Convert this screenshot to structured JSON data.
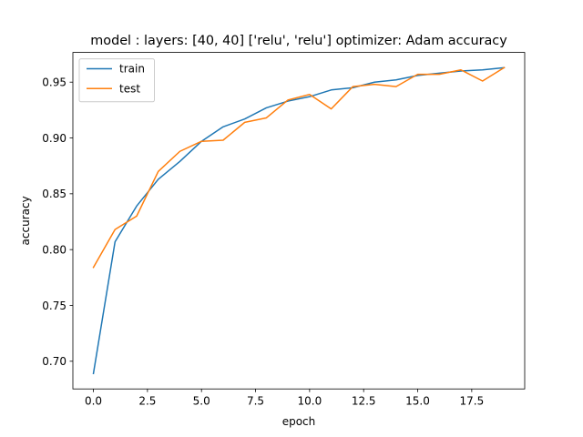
{
  "chart_data": {
    "type": "line",
    "title": "model : layers: [40, 40] ['relu', 'relu'] optimizer: Adam accuracy",
    "xlabel": "epoch",
    "ylabel": "accuracy",
    "xlim": [
      -0.95,
      19.95
    ],
    "ylim": [
      0.6752,
      0.9766
    ],
    "xticks": [
      0.0,
      2.5,
      5.0,
      7.5,
      10.0,
      12.5,
      15.0,
      17.5
    ],
    "xtick_labels": [
      "0.0",
      "2.5",
      "5.0",
      "7.5",
      "10.0",
      "12.5",
      "15.0",
      "17.5"
    ],
    "yticks": [
      0.7,
      0.75,
      0.8,
      0.85,
      0.9,
      0.95
    ],
    "ytick_labels": [
      "0.70",
      "0.75",
      "0.80",
      "0.85",
      "0.90",
      "0.95"
    ],
    "grid": false,
    "legend_position": "top-left",
    "x": [
      0,
      1,
      2,
      3,
      4,
      5,
      6,
      7,
      8,
      9,
      10,
      11,
      12,
      13,
      14,
      15,
      16,
      17,
      18,
      19
    ],
    "series": [
      {
        "name": "train",
        "color": "#1f77b4",
        "values": [
          0.689,
          0.807,
          0.839,
          0.863,
          0.879,
          0.897,
          0.91,
          0.917,
          0.927,
          0.933,
          0.937,
          0.943,
          0.945,
          0.95,
          0.952,
          0.956,
          0.958,
          0.96,
          0.961,
          0.963
        ]
      },
      {
        "name": "test",
        "color": "#ff7f0e",
        "values": [
          0.784,
          0.818,
          0.83,
          0.87,
          0.888,
          0.897,
          0.898,
          0.914,
          0.918,
          0.934,
          0.939,
          0.926,
          0.946,
          0.948,
          0.946,
          0.957,
          0.957,
          0.961,
          0.951,
          0.963
        ]
      }
    ]
  }
}
